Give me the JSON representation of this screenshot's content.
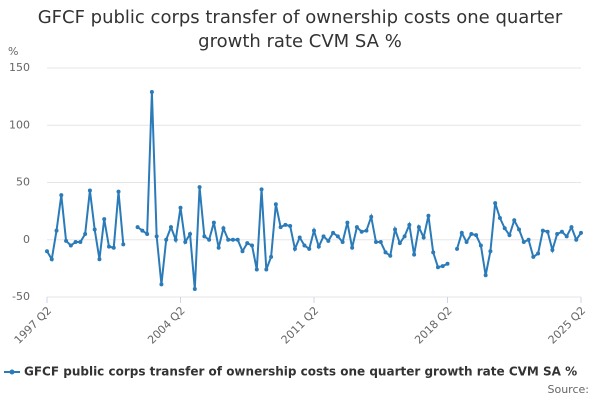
{
  "chart_data": {
    "type": "line",
    "title": "GFCF public corps transfer of ownership costs one quarter growth rate CVM SA %",
    "y_label": "%",
    "source": "Source:",
    "categories": [
      "1997 Q2",
      null,
      null,
      null,
      null,
      null,
      null,
      null,
      null,
      null,
      null,
      null,
      null,
      null,
      null,
      null,
      null,
      null,
      null,
      null,
      null,
      null,
      null,
      null,
      null,
      null,
      null,
      null,
      "2004 Q2",
      null,
      null,
      null,
      null,
      null,
      null,
      null,
      null,
      null,
      null,
      null,
      null,
      null,
      null,
      null,
      null,
      null,
      null,
      null,
      null,
      null,
      null,
      null,
      null,
      null,
      null,
      null,
      "2011 Q2",
      null,
      null,
      null,
      null,
      null,
      null,
      null,
      null,
      null,
      null,
      null,
      null,
      null,
      null,
      null,
      null,
      null,
      null,
      null,
      null,
      null,
      null,
      null,
      null,
      null,
      null,
      null,
      "2018 Q2",
      null,
      null,
      null,
      null,
      null,
      null,
      null,
      null,
      null,
      null,
      null,
      null,
      null,
      null,
      null,
      null,
      null,
      null,
      null,
      null,
      null,
      null,
      null,
      null,
      null,
      null,
      null,
      "2025 Q2"
    ],
    "series": [
      {
        "name": "GFCF public corps transfer of ownership costs one quarter growth rate CVM SA %",
        "color": "#2b7bb9",
        "values": [
          -10,
          -17,
          8,
          39,
          -1,
          -5,
          -2,
          -2,
          5,
          43,
          9,
          -17,
          18,
          -6,
          -7,
          42,
          -4,
          null,
          null,
          11,
          8,
          5,
          129,
          3,
          -39,
          0,
          11,
          0,
          28,
          -2,
          5,
          -43,
          46,
          3,
          0,
          15,
          -7,
          10,
          0,
          0,
          0,
          -10,
          -3,
          -5,
          -26,
          44,
          -26,
          -15,
          31,
          11,
          13,
          12,
          -8,
          2,
          -5,
          -8,
          8,
          -6,
          3,
          -1,
          6,
          3,
          -2,
          15,
          -7,
          11,
          7,
          8,
          20,
          -2,
          -2,
          -11,
          -14,
          9,
          -3,
          3,
          13,
          -13,
          11,
          2,
          21,
          -11,
          -24,
          -23,
          -21,
          null,
          -8,
          6,
          -2,
          5,
          4,
          -5,
          -31,
          -10,
          32,
          19,
          10,
          4,
          17,
          9,
          -2,
          0,
          -15,
          -12,
          8,
          7,
          -9,
          5,
          7,
          3,
          11,
          0,
          6
        ]
      }
    ],
    "ylim": [
      -50,
      150
    ],
    "yticks": [
      -50,
      0,
      50,
      100,
      150
    ],
    "grid": true
  }
}
